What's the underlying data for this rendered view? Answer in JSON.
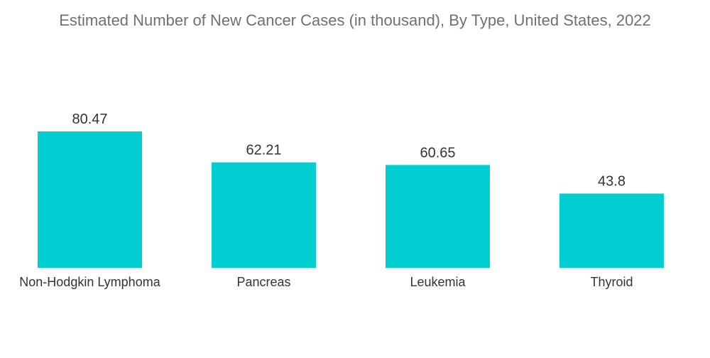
{
  "chart_data": {
    "type": "bar",
    "title": "Estimated Number of New Cancer Cases (in thousand), By Type, United States, 2022",
    "categories": [
      "Non-Hodgkin Lymphoma",
      "Pancreas",
      "Leukemia",
      "Thyroid"
    ],
    "values": [
      80.47,
      62.21,
      60.65,
      43.8
    ],
    "value_labels": [
      "80.47",
      "62.21",
      "60.65",
      "43.8"
    ],
    "xlabel": "",
    "ylabel": "",
    "ylim": [
      0,
      100
    ],
    "grid": false,
    "legend": "none",
    "bar_color": "#00CED1"
  }
}
